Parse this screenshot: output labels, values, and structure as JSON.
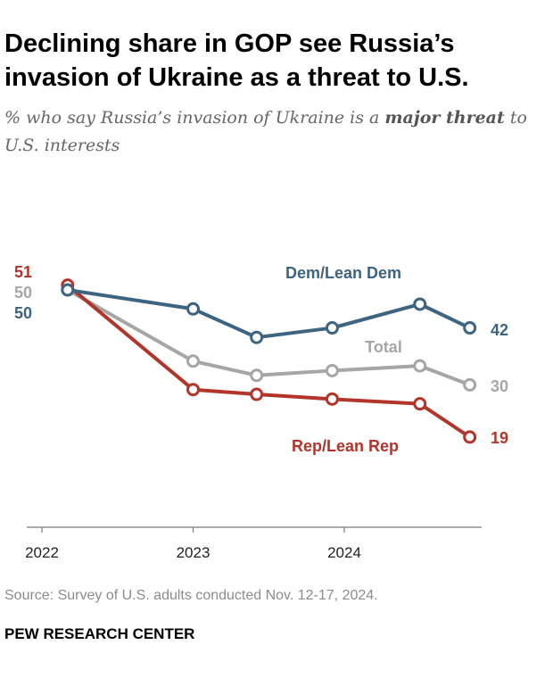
{
  "title": "Declining share in GOP see Russia’s invasion of Ukraine as a threat to U.S.",
  "subtitle": {
    "prefix": "% who say Russia’s invasion of Ukraine is a ",
    "emphasis": "major threat",
    "suffix": " to U.S. interests"
  },
  "chart_data": {
    "type": "line",
    "x": [
      2022.17,
      2023.0,
      2023.42,
      2023.92,
      2024.5,
      2024.83
    ],
    "x_ticks": [
      2022,
      2023,
      2024
    ],
    "x_tick_labels": [
      "2022",
      "2023",
      "2024"
    ],
    "ylim": [
      0,
      60
    ],
    "grid": false,
    "series": [
      {
        "name": "Dem/Lean Dem",
        "color": "#3d6480",
        "values": [
          50,
          46,
          40,
          42,
          47,
          42
        ],
        "start_label": "50",
        "end_label": "42"
      },
      {
        "name": "Total",
        "color": "#a6a6a6",
        "values": [
          50,
          35,
          32,
          33,
          34,
          30
        ],
        "start_label": "50",
        "end_label": "30"
      },
      {
        "name": "Rep/Lean Rep",
        "color": "#b3352a",
        "values": [
          51,
          29,
          28,
          27,
          26,
          19
        ],
        "start_label": "51",
        "end_label": "19"
      }
    ]
  },
  "source": "Source: Survey of U.S. adults conducted Nov. 12-17, 2024.",
  "organization": "PEW RESEARCH CENTER"
}
